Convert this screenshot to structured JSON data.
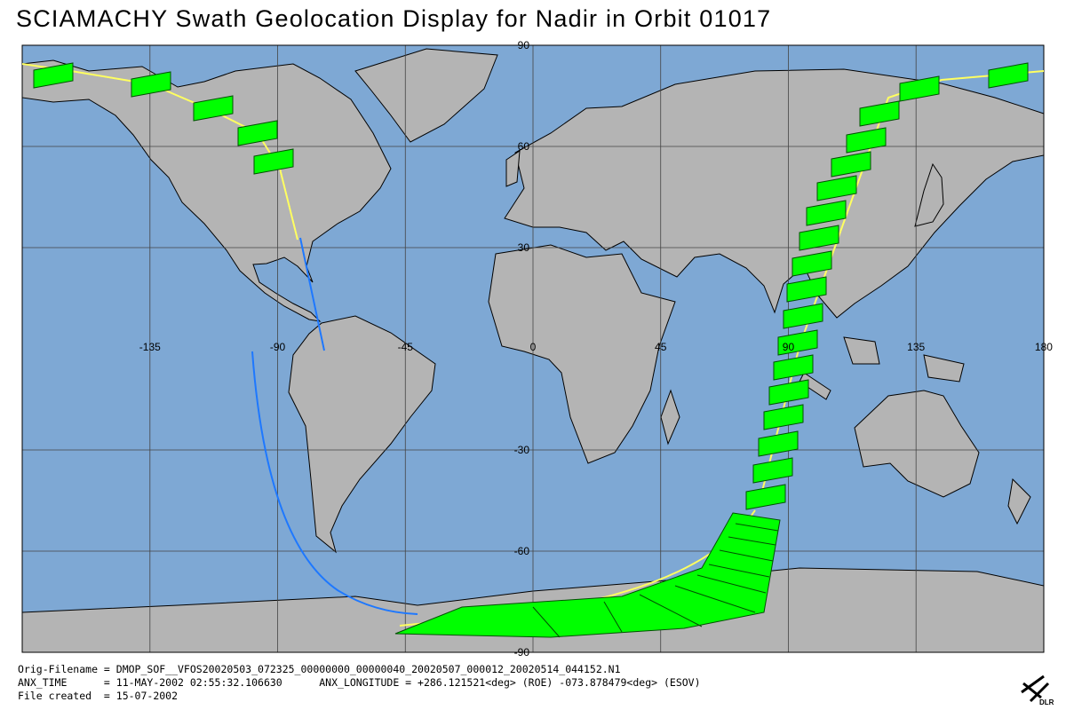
{
  "header": {
    "title": "SCIAMACHY Swath Geolocation Display for Nadir in Orbit 01017"
  },
  "map": {
    "lat_labels": [
      90,
      60,
      30,
      -30,
      -60,
      -90
    ],
    "lon_labels": [
      -135,
      -90,
      -45,
      0,
      45,
      90,
      135,
      180
    ]
  },
  "footer": {
    "lines": [
      "Orig-Filename = DMOP_SOF__VFOS20020503_072325_00000000_00000040_20020507_000012_20020514_044152.N1",
      "ANX_TIME      = 11-MAY-2002 02:55:32.106630      ANX_LONGITUDE = +286.121521<deg> (ROE) -073.878479<deg> (ESOV)",
      "File created  = 15-07-2002"
    ],
    "logo": "DLR"
  }
}
